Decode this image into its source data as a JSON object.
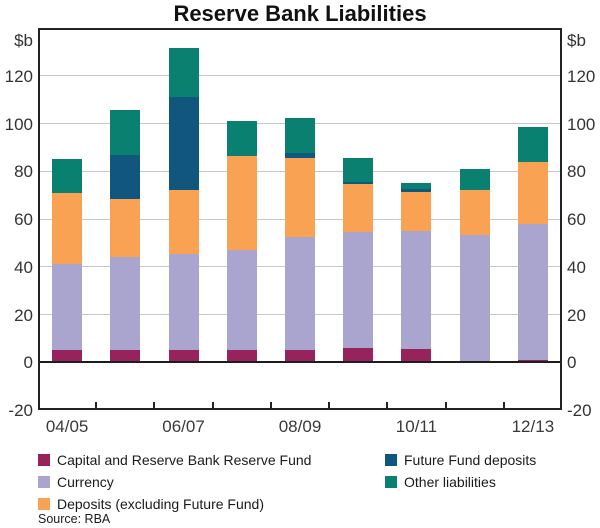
{
  "chart_data": {
    "type": "bar",
    "stacked": true,
    "title": "Reserve Bank Liabilities",
    "unit_label": "$b",
    "source": "Source: RBA",
    "ylim": [
      -20,
      140
    ],
    "yticks": [
      -20,
      0,
      20,
      40,
      60,
      80,
      100,
      120
    ],
    "grid": "horizontal",
    "categories": [
      "04/05",
      "05/06",
      "06/07",
      "07/08",
      "08/09",
      "09/10",
      "10/11",
      "11/12",
      "12/13"
    ],
    "x_ticks": [
      {
        "index": 0,
        "label": "04/05"
      },
      {
        "index": 2,
        "label": "06/07"
      },
      {
        "index": 4,
        "label": "08/09"
      },
      {
        "index": 6,
        "label": "10/11"
      },
      {
        "index": 8,
        "label": "12/13"
      }
    ],
    "series": [
      {
        "name": "Capital and Reserve Bank Reserve Fund",
        "color": "#97235C",
        "values": [
          5,
          5,
          5,
          5,
          5,
          6,
          5.5,
          0,
          1
        ]
      },
      {
        "name": "Currency",
        "color": "#A9A5CE",
        "values": [
          36,
          39,
          40.5,
          42,
          47.5,
          48.5,
          49.5,
          53.5,
          57
        ]
      },
      {
        "name": "Deposits (excluding Future Fund)",
        "color": "#F9A253",
        "values": [
          30,
          24.5,
          26.5,
          39.5,
          33,
          20,
          16.5,
          18.5,
          26
        ]
      },
      {
        "name": "Future Fund deposits",
        "color": "#11567D",
        "values": [
          0,
          18.5,
          39,
          0,
          2,
          1,
          1,
          0,
          0
        ]
      },
      {
        "name": "Other liabilities",
        "color": "#0A8170",
        "values": [
          14,
          18.5,
          20.5,
          14.5,
          15,
          10,
          2.5,
          9,
          14.5
        ]
      }
    ],
    "legend": {
      "columns": [
        {
          "series_indexes": [
            0,
            1,
            2
          ]
        },
        {
          "series_indexes": [
            3,
            4
          ]
        }
      ],
      "position": "bottom"
    }
  }
}
